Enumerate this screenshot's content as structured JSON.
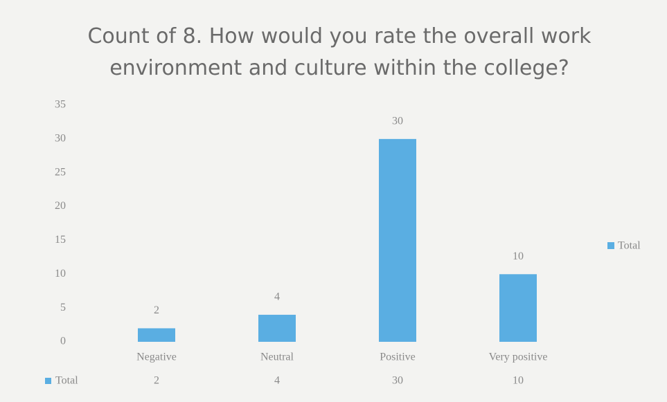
{
  "chart_data": {
    "type": "bar",
    "title": "Count of 8. How would you rate the overall work environment and culture within the college?",
    "categories": [
      "Negative",
      "Neutral",
      "Positive",
      "Very positive"
    ],
    "series": [
      {
        "name": "Total",
        "color": "#5aaee2",
        "values": [
          2,
          4,
          30,
          10
        ]
      }
    ],
    "ylim": [
      0,
      35
    ],
    "yticks": [
      0,
      5,
      10,
      15,
      20,
      25,
      30,
      35
    ],
    "grid": false,
    "legend": "right",
    "data_table": true
  }
}
